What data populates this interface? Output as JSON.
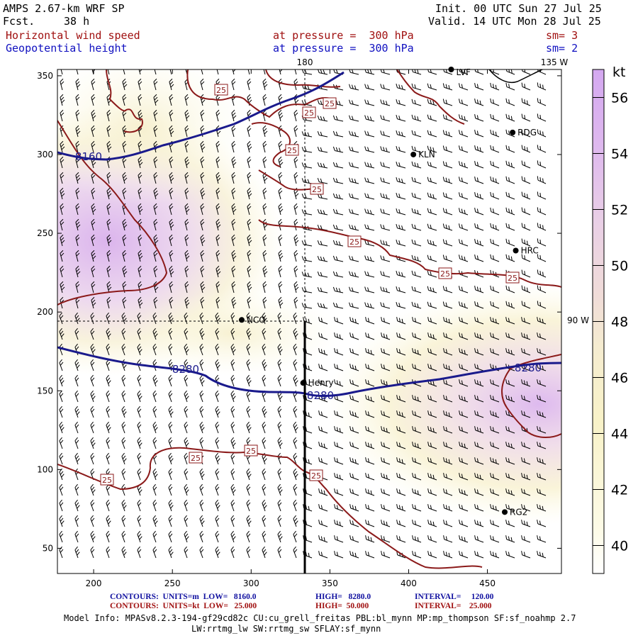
{
  "header": {
    "model": "AMPS 2.67-km WRF SP",
    "fcst_label": "Fcst.",
    "fcst_value": "38 h",
    "init": "Init. 00 UTC Sun 27 Jul 25",
    "valid": "Valid. 14 UTC Mon 28 Jul 25",
    "field1": "Horizontal wind speed",
    "field1_level": "at pressure =  300 hPa",
    "field1_sm": "sm= 3",
    "field2": "Geopotential height",
    "field2_level": "at pressure =  300 hPa",
    "field2_sm": "sm= 2"
  },
  "footer": {
    "line1_a": "CONTOURS:  UNITS=m  LOW=   8160.0",
    "line1_b": "HIGH=   8280.0",
    "line1_c": "INTERVAL=     120.00",
    "line2_a": "CONTOURS:  UNITS=kt  LOW=   25.000",
    "line2_b": "HIGH=  50.000",
    "line2_c": "INTERVAL=    25.000",
    "info1": "Model Info: MPASv8.2.3-194-gf29cd82c CU:cu_grell_freitas PBL:bl_mynn MP:mp_thompson SF:sf_noahmp 2.7",
    "info2": "LW:rrtmg_lw SW:rrtmg_sw SFLAY:sf_mynn"
  },
  "colors": {
    "height_contour": "#1a1a8c",
    "speed_contour": "#8b1a1a",
    "station": "#000000"
  },
  "chart_data": {
    "type": "heatmap",
    "title": "Horizontal wind speed / Geopotential height at 300 hPa",
    "xlim": [
      177,
      497
    ],
    "ylim": [
      34,
      354
    ],
    "x_ticks": [
      200,
      250,
      300,
      350,
      400,
      450
    ],
    "y_ticks": [
      50,
      100,
      150,
      200,
      250,
      300,
      350
    ],
    "meridian_labels": [
      "180",
      "135 W",
      "90 W"
    ],
    "colorbar": {
      "unit": "kt",
      "ticks": [
        40,
        42,
        44,
        46,
        48,
        50,
        52,
        54,
        56
      ],
      "range": [
        39,
        57
      ]
    },
    "contour_labels": {
      "height": [
        "8160",
        "8280",
        "8280",
        "8280"
      ],
      "speed": [
        "25",
        "25",
        "25",
        "25",
        "25",
        "25",
        "25",
        "25",
        "25",
        "25",
        "25",
        "25"
      ]
    },
    "stations": [
      {
        "name": "LVF",
        "x": 427,
        "y": 357
      },
      {
        "name": "RDG",
        "x": 466,
        "y": 314
      },
      {
        "name": "KLN",
        "x": 403,
        "y": 300
      },
      {
        "name": "HRC",
        "x": 468,
        "y": 239
      },
      {
        "name": "NCO",
        "x": 294,
        "y": 195
      },
      {
        "name": "Henry",
        "x": 333,
        "y": 155
      },
      {
        "name": "RG2",
        "x": 461,
        "y": 73
      }
    ]
  }
}
